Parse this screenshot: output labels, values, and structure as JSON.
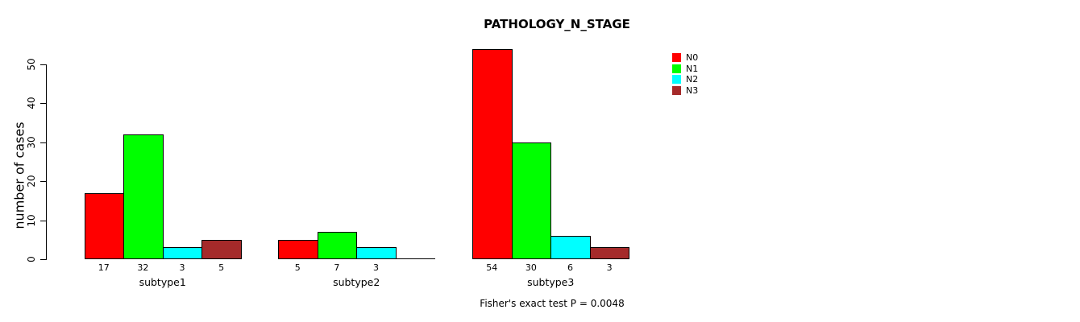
{
  "chart_data": {
    "type": "bar",
    "title": "PATHOLOGY_N_STAGE",
    "ylabel": "number of cases",
    "xlabel": "",
    "ylim": [
      0,
      50
    ],
    "yticks": [
      0,
      10,
      20,
      30,
      40,
      50
    ],
    "grid": false,
    "categories": [
      "subtype1",
      "subtype2",
      "subtype3"
    ],
    "series": [
      {
        "name": "N0",
        "color": "#FF0000",
        "values": [
          17,
          5,
          54
        ]
      },
      {
        "name": "N1",
        "color": "#00FF00",
        "values": [
          32,
          7,
          30
        ]
      },
      {
        "name": "N2",
        "color": "#00FFFF",
        "values": [
          3,
          3,
          6
        ]
      },
      {
        "name": "N3",
        "color": "#A52A2A",
        "values": [
          5,
          0,
          3
        ]
      }
    ],
    "bar_value_labels_shown": true,
    "legend": {
      "position": "top-right",
      "entries": [
        "N0",
        "N1",
        "N2",
        "N3"
      ]
    },
    "annotation": "Fisher's exact test P = 0.0048"
  }
}
